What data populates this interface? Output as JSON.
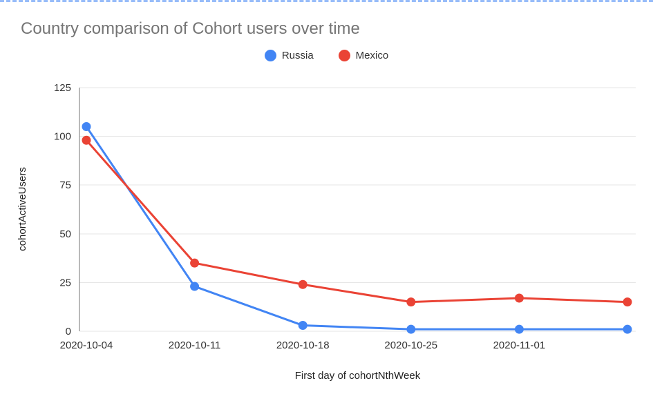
{
  "chart_data": {
    "type": "line",
    "title": "Country comparison of Cohort users over time",
    "xlabel": "First day of cohortNthWeek",
    "ylabel": "cohortActiveUsers",
    "categories": [
      "2020-10-04",
      "2020-10-11",
      "2020-10-18",
      "2020-10-25",
      "2020-11-01",
      ""
    ],
    "series": [
      {
        "name": "Russia",
        "color": "#4285F4",
        "values": [
          105,
          23,
          3,
          1,
          1,
          1
        ]
      },
      {
        "name": "Mexico",
        "color": "#EA4335",
        "values": [
          98,
          35,
          24,
          15,
          17,
          15
        ]
      }
    ],
    "ylim": [
      0,
      125
    ],
    "y_ticks": [
      0,
      25,
      50,
      75,
      100,
      125
    ],
    "grid": true,
    "legend_position": "top-center",
    "colors": {
      "grid": "#e6e6e6",
      "axis_line": "#757575",
      "tick_text": "#333333",
      "title_text": "#757575"
    }
  }
}
